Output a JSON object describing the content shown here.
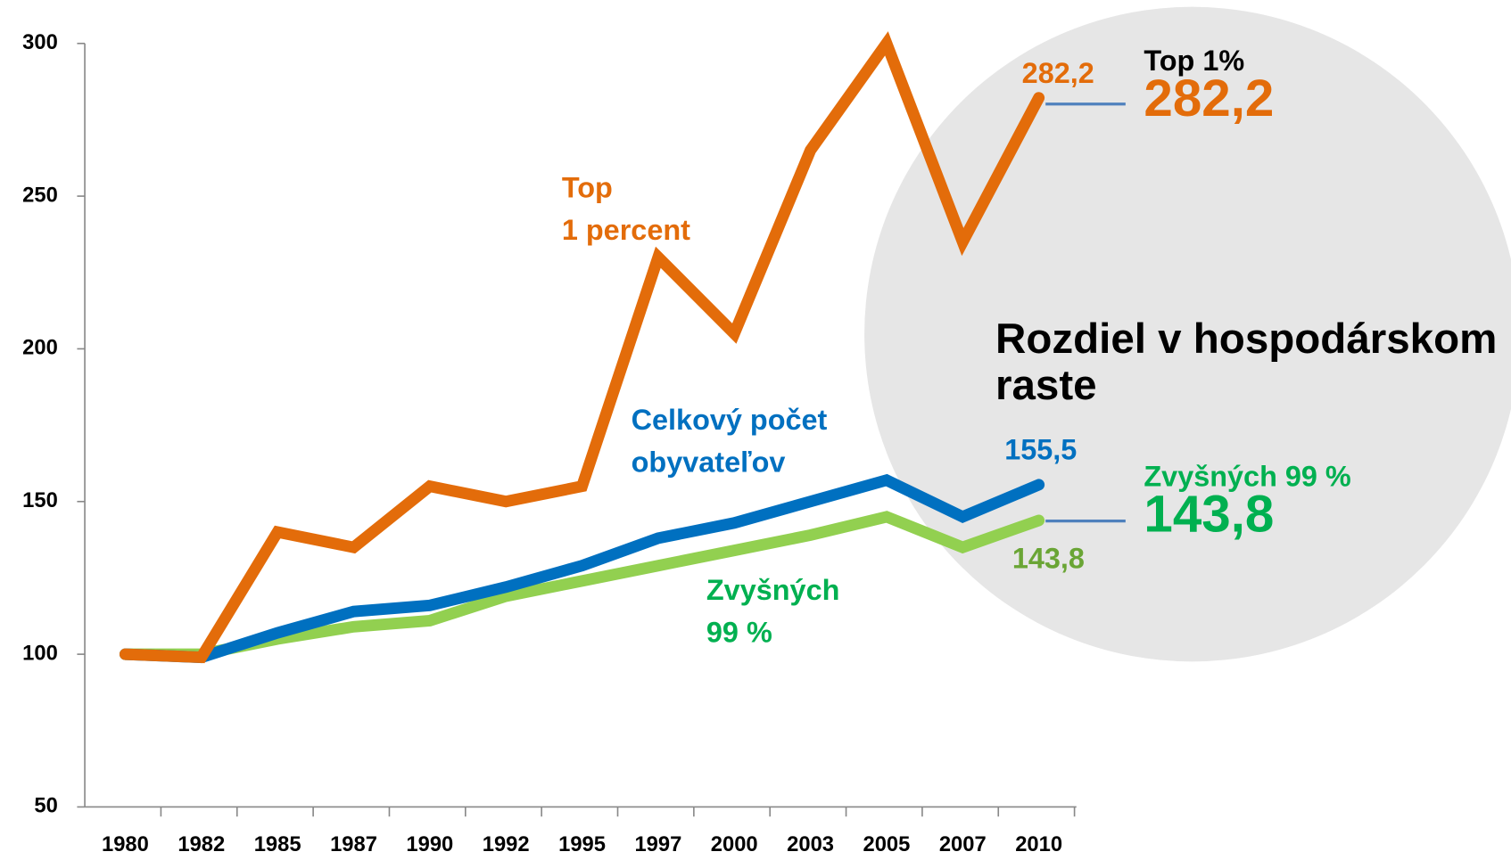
{
  "chart_data": {
    "type": "line",
    "categories": [
      "1980",
      "1982",
      "1985",
      "1987",
      "1990",
      "1992",
      "1995",
      "1997",
      "2000",
      "2003",
      "2005",
      "2007",
      "2010"
    ],
    "series": [
      {
        "name": "Top 1%",
        "color": "#e36c0a",
        "label_lines": [
          "Top",
          "1 percent"
        ],
        "end_label": "282,2",
        "callout_value": "282,2",
        "values": [
          100,
          99,
          140,
          135,
          155,
          150,
          155,
          230,
          205,
          265,
          300,
          235,
          282.2
        ]
      },
      {
        "name": "Celkový počet obyvateľov",
        "color": "#0070c0",
        "label_lines": [
          "Celkový počet",
          "obyvateľov"
        ],
        "end_label": "155,5",
        "values": [
          100,
          99,
          107,
          114,
          116,
          122,
          129,
          138,
          143,
          150,
          157,
          145,
          155.5
        ]
      },
      {
        "name": "Zvyšných 99 %",
        "color": "#92d050",
        "label_lines": [
          "Zvyšných",
          "99 %"
        ],
        "end_label": "143,8",
        "callout_value": "143,8",
        "values": [
          100,
          100,
          105,
          109,
          111,
          119,
          124,
          129,
          134,
          139,
          145,
          135,
          143.8
        ]
      }
    ],
    "circle_text": [
      "Rozdiel v hospodárskom",
      "raste"
    ],
    "ylim": [
      50,
      300
    ],
    "yticks": [
      50,
      100,
      150,
      200,
      250,
      300
    ]
  }
}
